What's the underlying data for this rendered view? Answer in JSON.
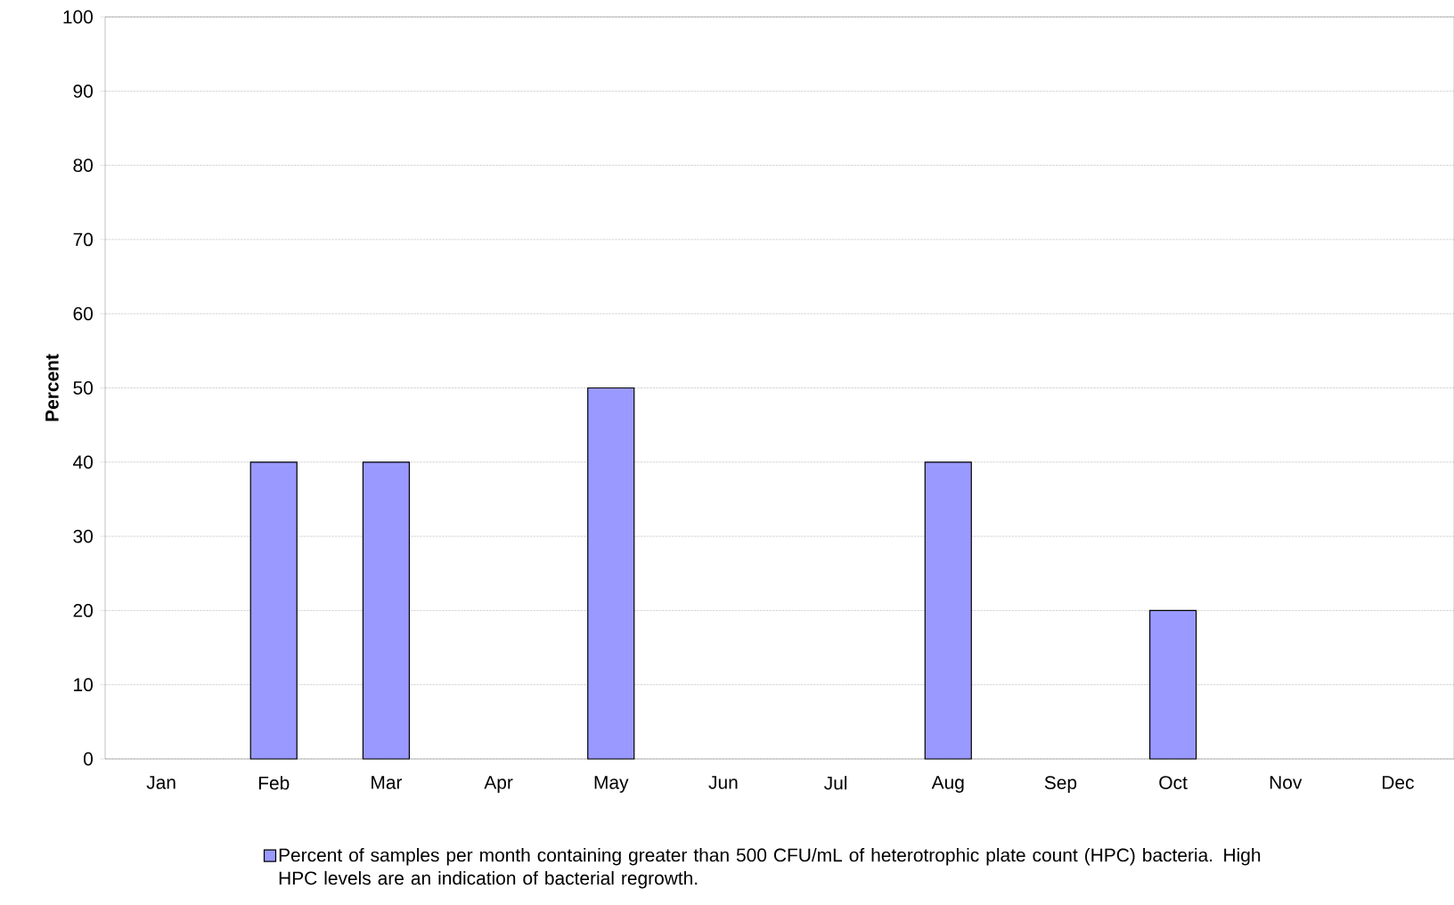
{
  "chart_data": {
    "type": "bar",
    "ylabel": "Percent",
    "categories": [
      "Jan",
      "Feb",
      "Mar",
      "Apr",
      "May",
      "Jun",
      "Jul",
      "Aug",
      "Sep",
      "Oct",
      "Nov",
      "Dec"
    ],
    "series": [
      {
        "name": "Percent of samples per month containing greater than 500 CFU/mL of heterotrophic plate count (HPC) bacteria.  High HPC levels are an indication of bacterial regrowth.",
        "color": "#9999ff",
        "values": [
          null,
          40,
          40,
          null,
          50,
          null,
          null,
          40,
          null,
          20,
          null,
          null
        ]
      }
    ],
    "ylim": [
      0,
      100
    ],
    "yticks": [
      0,
      10,
      20,
      30,
      40,
      50,
      60,
      70,
      80,
      90,
      100
    ],
    "grid": "y",
    "legend": "bottom"
  }
}
